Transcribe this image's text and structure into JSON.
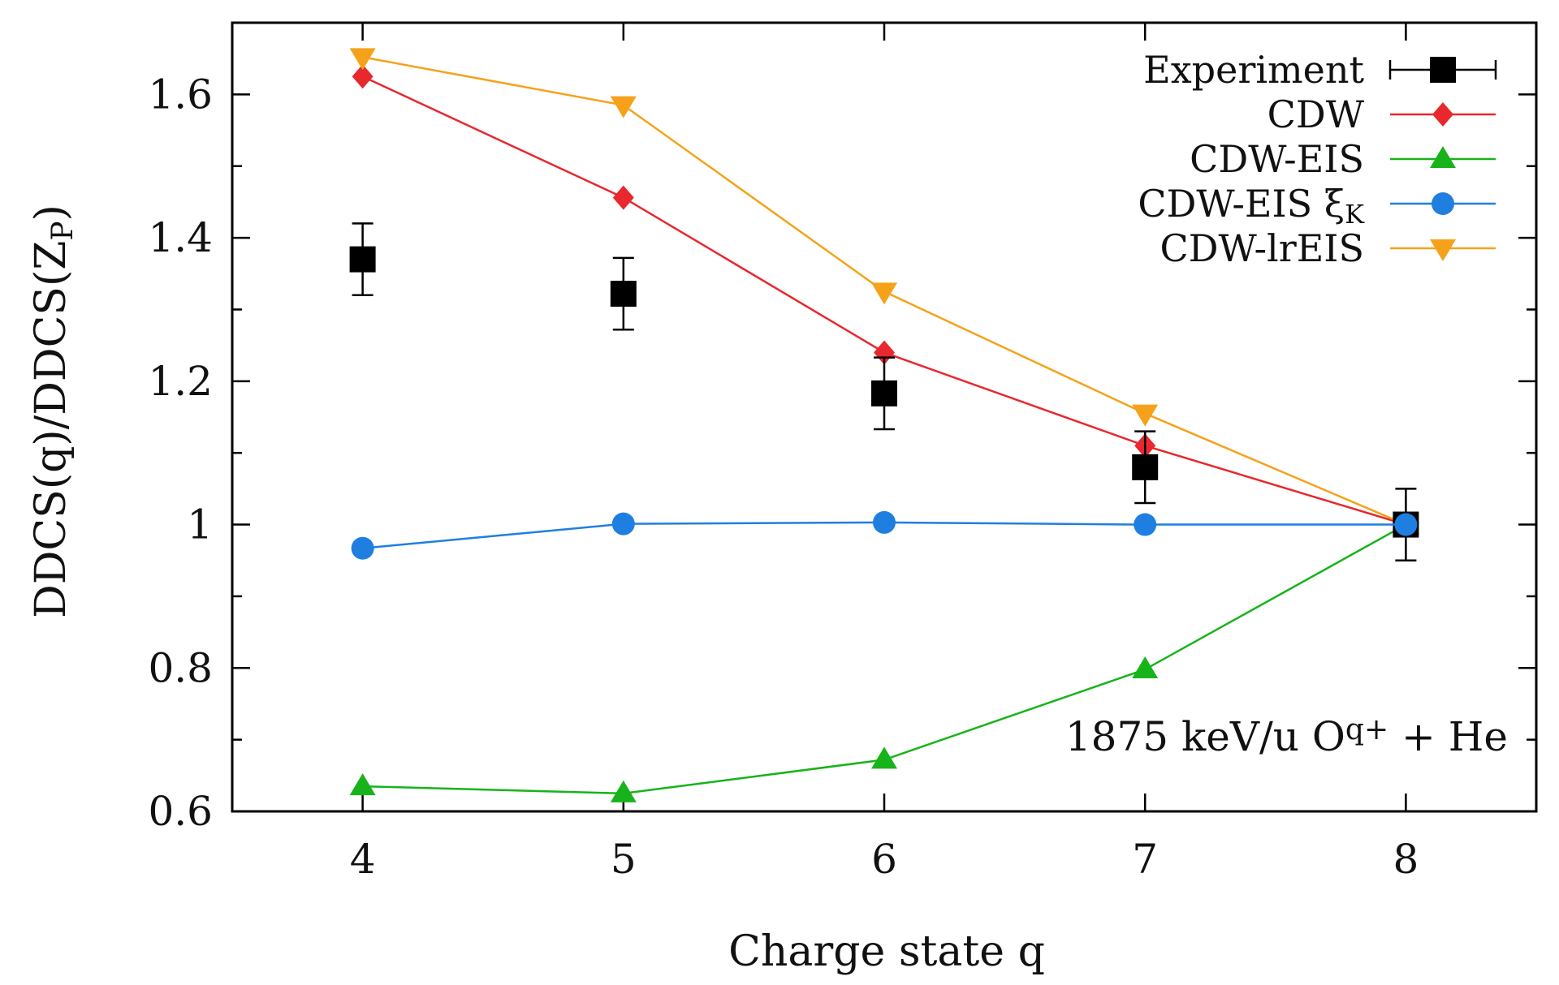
{
  "chart_data": {
    "type": "line",
    "title": "",
    "annotation": {
      "main": "1875 keV/u O",
      "superscript": "q+",
      "tail": " + He"
    },
    "xlabel": "Charge state q",
    "ylabel": {
      "main": "DDCS(q)/DDCS(Z",
      "subscript": "P",
      "tail": ")"
    },
    "x": [
      4,
      5,
      6,
      7,
      8
    ],
    "x_tick_labels": [
      "4",
      "5",
      "6",
      "7",
      "8"
    ],
    "xlim": [
      3.5,
      8.5
    ],
    "ylim": [
      0.6,
      1.7
    ],
    "y_ticks": [
      0.6,
      0.8,
      1.0,
      1.2,
      1.4,
      1.6
    ],
    "y_tick_labels": [
      "0.6",
      "0.8",
      "1",
      "1.2",
      "1.4",
      "1.6"
    ],
    "grid": false,
    "legend_position": "top-right",
    "series": [
      {
        "name": "Experiment",
        "label_main": "Experiment",
        "label_sub": "",
        "color": "#000000",
        "marker": "square",
        "line": false,
        "values": [
          1.37,
          1.322,
          1.183,
          1.08,
          1.0
        ],
        "errors": [
          0.05,
          0.05,
          0.05,
          0.05,
          0.05
        ]
      },
      {
        "name": "CDW",
        "label_main": "CDW",
        "label_sub": "",
        "color": "#e8282d",
        "marker": "diamond",
        "line": true,
        "values": [
          1.625,
          1.456,
          1.24,
          1.11,
          1.0
        ]
      },
      {
        "name": "CDW-EIS",
        "label_main": "CDW-EIS",
        "label_sub": "",
        "color": "#17b31a",
        "marker": "triangle-up",
        "line": true,
        "values": [
          0.635,
          0.625,
          0.672,
          0.798,
          1.0
        ]
      },
      {
        "name": "CDW-EIS ξK",
        "label_main": "CDW-EIS ξ",
        "label_sub": "K",
        "color": "#1e7fe0",
        "marker": "circle",
        "line": true,
        "values": [
          0.967,
          1.001,
          1.003,
          1.0,
          1.0
        ]
      },
      {
        "name": "CDW-lrEIS",
        "label_main": "CDW-lrEIS",
        "label_sub": "",
        "color": "#f5a21a",
        "marker": "triangle-down",
        "line": true,
        "values": [
          1.652,
          1.585,
          1.325,
          1.155,
          1.0
        ]
      }
    ]
  }
}
